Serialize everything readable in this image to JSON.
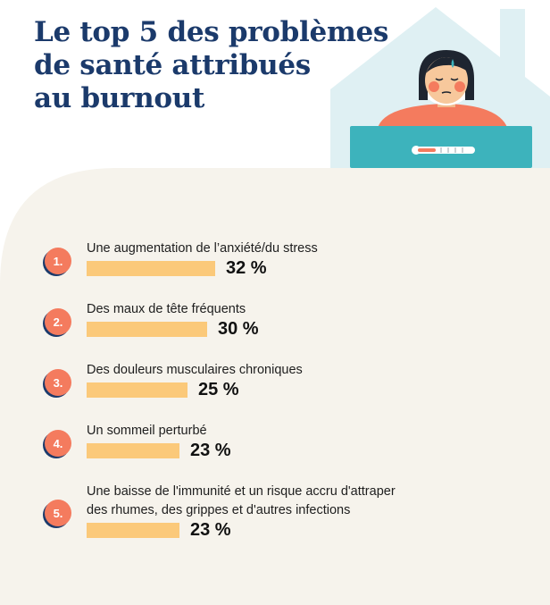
{
  "title": {
    "line1": "Le top 5 des problèmes",
    "line2": "de santé attribués",
    "line3": "au burnout"
  },
  "colors": {
    "title": "#1b3a6b",
    "panel": "#f6f3ec",
    "bar": "#fbc97a",
    "badge": "#f47b5e",
    "house": "#dff0f3",
    "blanket": "#3db3bc",
    "shirt": "#f47b5e"
  },
  "illustration": {
    "icons": [
      "house-icon",
      "sick-person-icon",
      "thermometer-icon"
    ]
  },
  "chart_data": {
    "type": "bar",
    "orientation": "horizontal",
    "title": "Le top 5 des problèmes de santé attribués au burnout",
    "categories": [
      "Une augmentation de l’anxiété/du stress",
      "Des maux de tête fréquents",
      "Des douleurs musculaires chroniques",
      "Un sommeil perturbé",
      "Une baisse de l'immunité et un risque accru d'attraper des rhumes, des grippes et d'autres infections"
    ],
    "values": [
      32,
      30,
      25,
      23,
      23
    ],
    "unit": "%",
    "xlim": [
      0,
      100
    ],
    "grid": false,
    "legend": "none",
    "items": [
      {
        "rank": "1.",
        "label_lines": [
          "Une augmentation de l’anxiété/du stress"
        ],
        "value": 32,
        "value_label": "32 %"
      },
      {
        "rank": "2.",
        "label_lines": [
          "Des maux de tête fréquents"
        ],
        "value": 30,
        "value_label": "30 %"
      },
      {
        "rank": "3.",
        "label_lines": [
          "Des douleurs musculaires chroniques"
        ],
        "value": 25,
        "value_label": "25 %"
      },
      {
        "rank": "4.",
        "label_lines": [
          "Un sommeil perturbé"
        ],
        "value": 23,
        "value_label": "23 %"
      },
      {
        "rank": "5.",
        "label_lines": [
          "Une baisse de l'immunité et un risque accru d'attraper",
          "des rhumes, des grippes et d'autres infections"
        ],
        "value": 23,
        "value_label": "23 %"
      }
    ]
  }
}
